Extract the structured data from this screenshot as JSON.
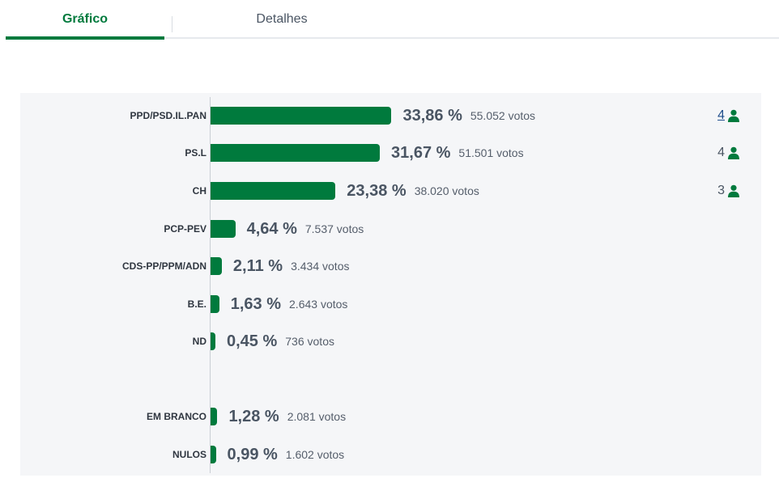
{
  "tabs": [
    {
      "label": "Gráfico",
      "active": true
    },
    {
      "label": "Detalhes",
      "active": false
    }
  ],
  "colors": {
    "accent": "#007a3d",
    "text": "#4a5563",
    "panel_bg": "#f5f6f8"
  },
  "chart_data": {
    "type": "bar",
    "orientation": "horizontal",
    "categories": [
      "PPD/PSD.IL.PAN",
      "PS.L",
      "CH",
      "PCP-PEV",
      "CDS-PP/PPM/ADN",
      "B.E.",
      "ND",
      "EM BRANCO",
      "NULOS"
    ],
    "values": [
      33.86,
      31.67,
      23.38,
      4.64,
      2.11,
      1.63,
      0.45,
      1.28,
      0.99
    ],
    "value_labels": [
      "33,86 %",
      "31,67 %",
      "23,38 %",
      "4,64 %",
      "2,11 %",
      "1,63 %",
      "0,45 %",
      "1,28 %",
      "0,99 %"
    ],
    "votes_labels": [
      "55.052 votos",
      "51.501 votos",
      "38.020 votos",
      "7.537 votos",
      "3.434 votos",
      "2.643 votos",
      "736 votos",
      "2.081 votos",
      "1.602 votos"
    ],
    "seats": [
      "4",
      "4",
      "3",
      "",
      "",
      "",
      "",
      "",
      ""
    ],
    "seat_icon": "person-icon",
    "xlim": [
      0,
      100
    ],
    "grid": false
  }
}
